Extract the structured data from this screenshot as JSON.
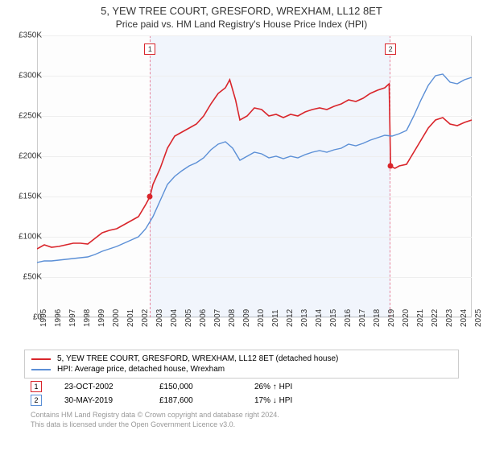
{
  "chart": {
    "title": "5, YEW TREE COURT, GRESFORD, WREXHAM, LL12 8ET",
    "subtitle": "Price paid vs. HM Land Registry's House Price Index (HPI)",
    "type": "line",
    "background_color": "#fdfdfd",
    "grid_color": "#eeeeee",
    "border_color": "#cccccc",
    "x_axis": {
      "min": 1995,
      "max": 2025,
      "ticks": [
        1995,
        1996,
        1997,
        1998,
        1999,
        2000,
        2001,
        2002,
        2003,
        2004,
        2005,
        2006,
        2007,
        2008,
        2009,
        2010,
        2011,
        2012,
        2013,
        2014,
        2015,
        2016,
        2017,
        2018,
        2019,
        2020,
        2021,
        2022,
        2023,
        2024,
        2025
      ],
      "label_fontsize": 10,
      "label_rotation": -90
    },
    "y_axis": {
      "min": 0,
      "max": 350000,
      "ticks": [
        0,
        50000,
        100000,
        150000,
        200000,
        250000,
        300000,
        350000
      ],
      "tick_labels": [
        "£0",
        "£50K",
        "£100K",
        "£150K",
        "£200K",
        "£250K",
        "£300K",
        "£350K"
      ],
      "label_fontsize": 10
    },
    "shaded_region": {
      "x_start": 2002.8,
      "x_end": 2019.4,
      "fill": "rgba(100,149,237,0.08)",
      "border": "rgba(220,20,60,0.5)"
    },
    "series": [
      {
        "name": "5, YEW TREE COURT, GRESFORD, WREXHAM, LL12 8ET (detached house)",
        "color": "#d9252b",
        "line_width": 1.6,
        "data": [
          [
            1995,
            85000
          ],
          [
            1995.5,
            90000
          ],
          [
            1996,
            87000
          ],
          [
            1996.5,
            88000
          ],
          [
            1997,
            90000
          ],
          [
            1997.5,
            92000
          ],
          [
            1998,
            92000
          ],
          [
            1998.5,
            91000
          ],
          [
            1999,
            98000
          ],
          [
            1999.5,
            105000
          ],
          [
            2000,
            108000
          ],
          [
            2000.5,
            110000
          ],
          [
            2001,
            115000
          ],
          [
            2001.5,
            120000
          ],
          [
            2002,
            125000
          ],
          [
            2002.5,
            140000
          ],
          [
            2002.8,
            150000
          ],
          [
            2003,
            165000
          ],
          [
            2003.5,
            185000
          ],
          [
            2004,
            210000
          ],
          [
            2004.5,
            225000
          ],
          [
            2005,
            230000
          ],
          [
            2005.5,
            235000
          ],
          [
            2006,
            240000
          ],
          [
            2006.5,
            250000
          ],
          [
            2007,
            265000
          ],
          [
            2007.5,
            278000
          ],
          [
            2008,
            285000
          ],
          [
            2008.3,
            295000
          ],
          [
            2008.7,
            270000
          ],
          [
            2009,
            245000
          ],
          [
            2009.5,
            250000
          ],
          [
            2010,
            260000
          ],
          [
            2010.5,
            258000
          ],
          [
            2011,
            250000
          ],
          [
            2011.5,
            252000
          ],
          [
            2012,
            248000
          ],
          [
            2012.5,
            252000
          ],
          [
            2013,
            250000
          ],
          [
            2013.5,
            255000
          ],
          [
            2014,
            258000
          ],
          [
            2014.5,
            260000
          ],
          [
            2015,
            258000
          ],
          [
            2015.5,
            262000
          ],
          [
            2016,
            265000
          ],
          [
            2016.5,
            270000
          ],
          [
            2017,
            268000
          ],
          [
            2017.5,
            272000
          ],
          [
            2018,
            278000
          ],
          [
            2018.5,
            282000
          ],
          [
            2019,
            285000
          ],
          [
            2019.3,
            290000
          ],
          [
            2019.4,
            187600
          ],
          [
            2019.7,
            185000
          ],
          [
            2020,
            188000
          ],
          [
            2020.5,
            190000
          ],
          [
            2021,
            205000
          ],
          [
            2021.5,
            220000
          ],
          [
            2022,
            235000
          ],
          [
            2022.5,
            245000
          ],
          [
            2023,
            248000
          ],
          [
            2023.5,
            240000
          ],
          [
            2024,
            238000
          ],
          [
            2024.5,
            242000
          ],
          [
            2025,
            245000
          ]
        ]
      },
      {
        "name": "HPI: Average price, detached house, Wrexham",
        "color": "#5b8fd6",
        "line_width": 1.4,
        "data": [
          [
            1995,
            68000
          ],
          [
            1995.5,
            70000
          ],
          [
            1996,
            70000
          ],
          [
            1996.5,
            71000
          ],
          [
            1997,
            72000
          ],
          [
            1997.5,
            73000
          ],
          [
            1998,
            74000
          ],
          [
            1998.5,
            75000
          ],
          [
            1999,
            78000
          ],
          [
            1999.5,
            82000
          ],
          [
            2000,
            85000
          ],
          [
            2000.5,
            88000
          ],
          [
            2001,
            92000
          ],
          [
            2001.5,
            96000
          ],
          [
            2002,
            100000
          ],
          [
            2002.5,
            110000
          ],
          [
            2003,
            125000
          ],
          [
            2003.5,
            145000
          ],
          [
            2004,
            165000
          ],
          [
            2004.5,
            175000
          ],
          [
            2005,
            182000
          ],
          [
            2005.5,
            188000
          ],
          [
            2006,
            192000
          ],
          [
            2006.5,
            198000
          ],
          [
            2007,
            208000
          ],
          [
            2007.5,
            215000
          ],
          [
            2008,
            218000
          ],
          [
            2008.5,
            210000
          ],
          [
            2009,
            195000
          ],
          [
            2009.5,
            200000
          ],
          [
            2010,
            205000
          ],
          [
            2010.5,
            203000
          ],
          [
            2011,
            198000
          ],
          [
            2011.5,
            200000
          ],
          [
            2012,
            197000
          ],
          [
            2012.5,
            200000
          ],
          [
            2013,
            198000
          ],
          [
            2013.5,
            202000
          ],
          [
            2014,
            205000
          ],
          [
            2014.5,
            207000
          ],
          [
            2015,
            205000
          ],
          [
            2015.5,
            208000
          ],
          [
            2016,
            210000
          ],
          [
            2016.5,
            215000
          ],
          [
            2017,
            213000
          ],
          [
            2017.5,
            216000
          ],
          [
            2018,
            220000
          ],
          [
            2018.5,
            223000
          ],
          [
            2019,
            226000
          ],
          [
            2019.5,
            225000
          ],
          [
            2020,
            228000
          ],
          [
            2020.5,
            232000
          ],
          [
            2021,
            250000
          ],
          [
            2021.5,
            270000
          ],
          [
            2022,
            288000
          ],
          [
            2022.5,
            300000
          ],
          [
            2023,
            302000
          ],
          [
            2023.5,
            292000
          ],
          [
            2024,
            290000
          ],
          [
            2024.5,
            295000
          ],
          [
            2025,
            298000
          ]
        ]
      }
    ],
    "markers": [
      {
        "id": "1",
        "x": 2002.8,
        "y": 150000,
        "color": "#d9252b",
        "box_y": 30000
      },
      {
        "id": "2",
        "x": 2019.4,
        "y": 187600,
        "color": "#d9252b",
        "box_y": 30000
      }
    ]
  },
  "legend": {
    "items": [
      {
        "color": "#d9252b",
        "label": "5, YEW TREE COURT, GRESFORD, WREXHAM, LL12 8ET (detached house)"
      },
      {
        "color": "#5b8fd6",
        "label": "HPI: Average price, detached house, Wrexham"
      }
    ]
  },
  "transactions": [
    {
      "id": "1",
      "color": "#d9252b",
      "date": "23-OCT-2002",
      "price": "£150,000",
      "delta": "26% ↑ HPI"
    },
    {
      "id": "2",
      "color": "#5b8fd6",
      "date": "30-MAY-2019",
      "price": "£187,600",
      "delta": "17% ↓ HPI"
    }
  ],
  "footer": {
    "line1": "Contains HM Land Registry data © Crown copyright and database right 2024.",
    "line2": "This data is licensed under the Open Government Licence v3.0."
  }
}
